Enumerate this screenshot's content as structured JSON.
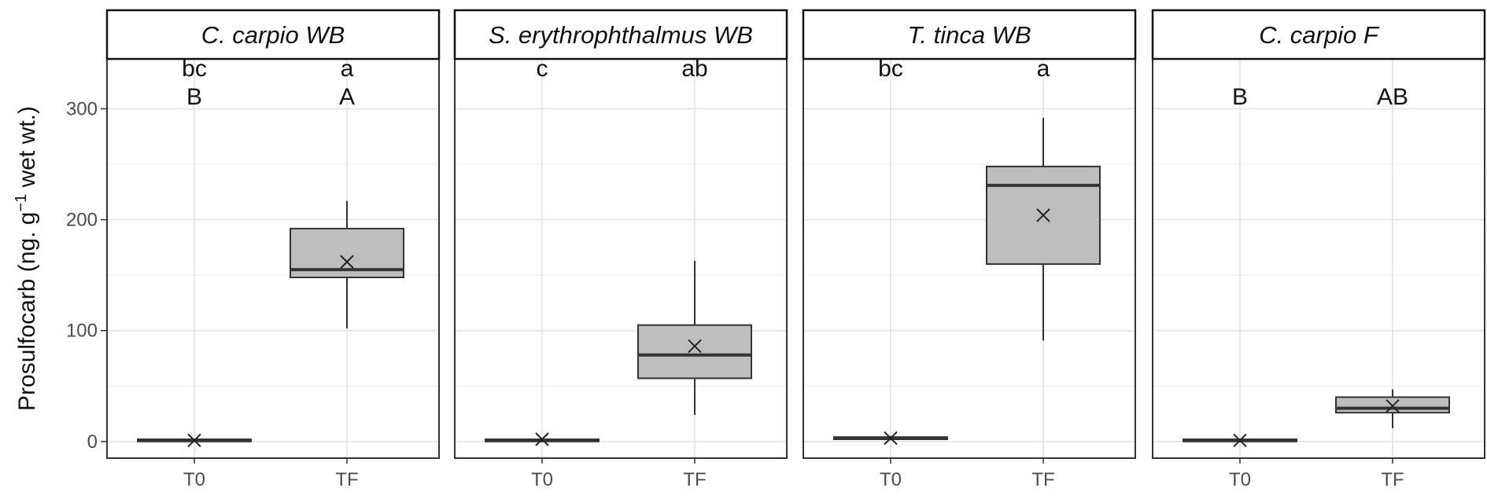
{
  "chart_data": {
    "type": "box",
    "ylabel": "Prosulfocarb (ng. g",
    "ylabel_superscript": "−1",
    "ylabel_suffix": " wet wt.)",
    "xlabel": "",
    "ylim": [
      -15,
      345
    ],
    "yticks": [
      0,
      100,
      200,
      300
    ],
    "categories": [
      "T0",
      "TF"
    ],
    "grid": true,
    "box_fill": "#bdbdbd",
    "box_stroke": "#333333",
    "panels": [
      {
        "title": "C. carpio WB",
        "groups": [
          {
            "x": "T0",
            "whisker_low": 0,
            "q1": 0,
            "median": 1,
            "q3": 2,
            "whisker_high": 2,
            "mean": 1,
            "letters": [
              "bc",
              "B"
            ]
          },
          {
            "x": "TF",
            "whisker_low": 102,
            "q1": 148,
            "median": 155,
            "q3": 192,
            "whisker_high": 217,
            "mean": 162,
            "letters": [
              "a",
              "A"
            ]
          }
        ]
      },
      {
        "title": "S. erythrophthalmus WB",
        "groups": [
          {
            "x": "T0",
            "whisker_low": 0,
            "q1": 0,
            "median": 1,
            "q3": 2,
            "whisker_high": 3,
            "mean": 2,
            "letters": [
              "c"
            ]
          },
          {
            "x": "TF",
            "whisker_low": 24,
            "q1": 57,
            "median": 78,
            "q3": 105,
            "whisker_high": 163,
            "mean": 86,
            "letters": [
              "ab"
            ]
          }
        ]
      },
      {
        "title": "T. tinca WB",
        "groups": [
          {
            "x": "T0",
            "whisker_low": 1,
            "q1": 2,
            "median": 3,
            "q3": 4,
            "whisker_high": 5,
            "mean": 3,
            "letters": [
              "bc"
            ]
          },
          {
            "x": "TF",
            "whisker_low": 91,
            "q1": 160,
            "median": 231,
            "q3": 248,
            "whisker_high": 292,
            "mean": 204,
            "letters": [
              "a"
            ]
          }
        ]
      },
      {
        "title": "C. carpio F",
        "groups": [
          {
            "x": "T0",
            "whisker_low": 0,
            "q1": 0,
            "median": 1,
            "q3": 2,
            "whisker_high": 2,
            "mean": 1,
            "letters": [
              "B"
            ]
          },
          {
            "x": "TF",
            "whisker_low": 12,
            "q1": 26,
            "median": 30,
            "q3": 40,
            "whisker_high": 47,
            "mean": 32,
            "letters": [
              "AB"
            ]
          }
        ]
      }
    ]
  }
}
